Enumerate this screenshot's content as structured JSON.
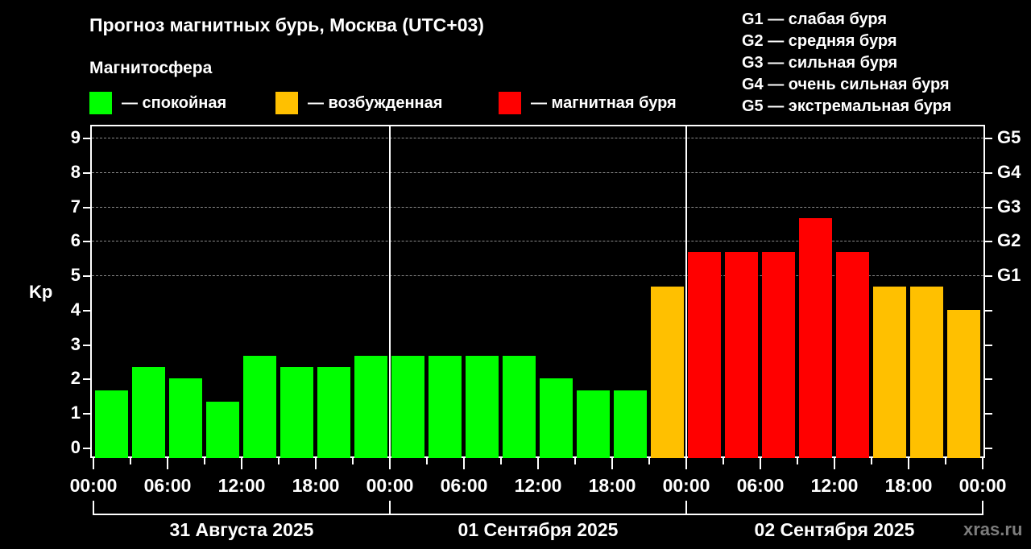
{
  "header": {
    "title": "Прогноз магнитных бурь, Москва (UTC+03)",
    "subtitle": "Магнитосфера"
  },
  "legend": {
    "items": [
      {
        "label": "— спокойная",
        "color": "#00ff00"
      },
      {
        "label": "— возбужденная",
        "color": "#ffc000"
      },
      {
        "label": "— магнитная буря",
        "color": "#ff0000"
      }
    ]
  },
  "g_scale_legend": [
    "G1 — слабая буря",
    "G2 — средняя буря",
    "G3 — сильная буря",
    "G4 — очень сильная буря",
    "G5 — экстремальная буря"
  ],
  "colors": {
    "quiet": "#00ff00",
    "active": "#ffc000",
    "storm": "#ff0000",
    "background": "#000000",
    "text": "#ffffff",
    "credit": "#7d7d7d"
  },
  "axis": {
    "ylabel": "Kp",
    "yticks": [
      "0",
      "1",
      "2",
      "3",
      "4",
      "5",
      "6",
      "7",
      "8",
      "9"
    ],
    "g_ticks": [
      {
        "label": "G1",
        "value": 5
      },
      {
        "label": "G2",
        "value": 6
      },
      {
        "label": "G3",
        "value": 7
      },
      {
        "label": "G4",
        "value": 8
      },
      {
        "label": "G5",
        "value": 9
      }
    ],
    "xticks": [
      "00:00",
      "06:00",
      "12:00",
      "18:00",
      "00:00",
      "06:00",
      "12:00",
      "18:00",
      "00:00",
      "06:00",
      "12:00",
      "18:00",
      "00:00"
    ],
    "days": [
      "31 Августа 2025",
      "01 Сентября 2025",
      "02 Сентября 2025"
    ]
  },
  "credit": "xras.ru",
  "chart_data": {
    "type": "bar",
    "title": "Прогноз магнитных бурь, Москва (UTC+03)",
    "xlabel": "",
    "ylabel": "Kp",
    "ylim": [
      0,
      9
    ],
    "grid": "dashed horizontal at Kp 5–9",
    "legend_position": "top",
    "categories": [
      "31.08 00:00",
      "31.08 03:00",
      "31.08 06:00",
      "31.08 09:00",
      "31.08 12:00",
      "31.08 15:00",
      "31.08 18:00",
      "31.08 21:00",
      "01.09 00:00",
      "01.09 03:00",
      "01.09 06:00",
      "01.09 09:00",
      "01.09 12:00",
      "01.09 15:00",
      "01.09 18:00",
      "01.09 21:00",
      "02.09 00:00",
      "02.09 03:00",
      "02.09 06:00",
      "02.09 09:00",
      "02.09 12:00",
      "02.09 15:00",
      "02.09 18:00",
      "02.09 21:00"
    ],
    "values": [
      1.67,
      2.33,
      2.0,
      1.33,
      2.67,
      2.33,
      2.33,
      2.67,
      2.67,
      2.67,
      2.67,
      2.67,
      2.0,
      1.67,
      1.67,
      4.67,
      5.67,
      5.67,
      5.67,
      6.67,
      5.67,
      4.67,
      4.67,
      4.0
    ],
    "status": [
      "quiet",
      "quiet",
      "quiet",
      "quiet",
      "quiet",
      "quiet",
      "quiet",
      "quiet",
      "quiet",
      "quiet",
      "quiet",
      "quiet",
      "quiet",
      "quiet",
      "quiet",
      "active",
      "storm",
      "storm",
      "storm",
      "storm",
      "storm",
      "active",
      "active",
      "active"
    ],
    "legend": [
      "спокойная",
      "возбужденная",
      "магнитная буря"
    ],
    "secondary_yaxis": {
      "G1": 5,
      "G2": 6,
      "G3": 7,
      "G4": 8,
      "G5": 9
    }
  }
}
